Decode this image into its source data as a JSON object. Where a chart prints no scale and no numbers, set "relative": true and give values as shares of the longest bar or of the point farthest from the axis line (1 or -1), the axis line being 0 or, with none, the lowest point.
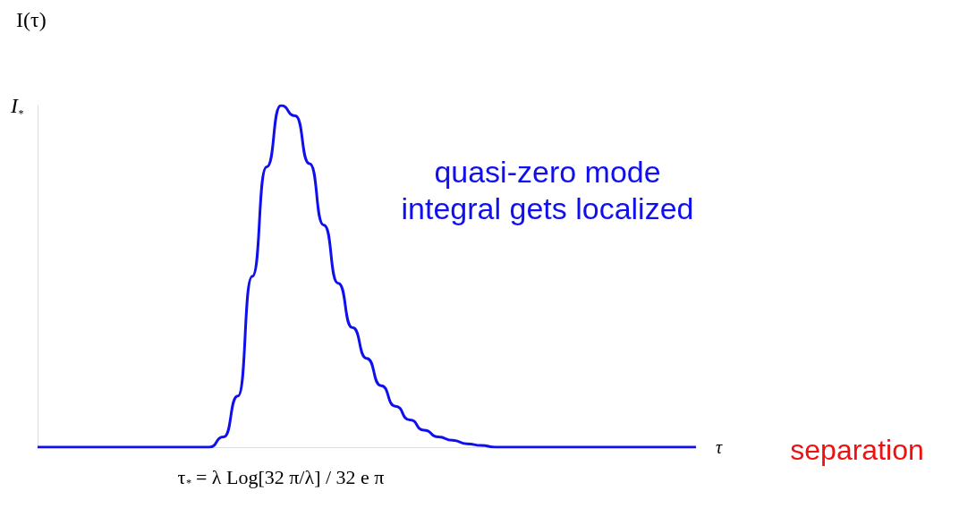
{
  "chart_data": {
    "type": "line",
    "relative": true,
    "ylabel": "I(τ)",
    "xlabel": "τ",
    "categories": [
      null,
      null,
      null,
      null,
      null,
      null,
      null,
      null,
      null,
      null,
      null,
      null,
      null,
      null,
      null,
      null,
      null,
      null,
      null,
      null,
      null,
      null,
      null,
      null,
      null,
      null,
      null,
      null,
      null,
      null,
      null,
      null,
      null,
      null,
      null,
      null,
      null,
      null,
      null,
      null,
      null,
      null,
      null,
      null,
      null,
      null,
      null
    ],
    "series": [
      {
        "color": "#1010ee",
        "values": [
          0,
          0,
          0,
          0,
          0,
          0,
          0,
          0,
          0,
          0,
          0,
          0,
          0,
          0.03,
          0.15,
          0.5,
          0.82,
          1,
          0.97,
          0.83,
          0.65,
          0.48,
          0.35,
          0.26,
          0.18,
          0.12,
          0.08,
          0.05,
          0.03,
          0.02,
          0.01,
          0.005,
          0,
          0,
          0,
          0,
          0,
          0,
          0,
          0,
          0,
          0,
          0,
          0,
          0,
          0,
          0
        ]
      }
    ],
    "marker": "none",
    "grid": false,
    "annotations": [
      "I$_{*}$",
      "τ$_{*}$ = λ Log[32 π/λ] / 32 e π",
      "quasi-zero mode\nintegral gets localized",
      "separation"
    ]
  }
}
